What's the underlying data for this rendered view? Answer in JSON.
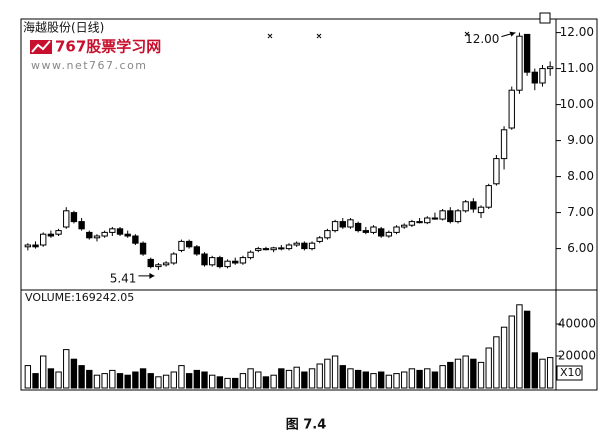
{
  "chart_data": {
    "type": "candlestick",
    "title": "海越股份(日线)",
    "watermark": "767股票学习网",
    "watermark_url": "www.net767.com",
    "volume_label": "VOLUME:169242.05",
    "volume_unit": "X10",
    "caption": "图 7.4",
    "annotations": [
      "5.41",
      "12.00"
    ],
    "up_color": "#ffffff",
    "down_color": "#000000",
    "ylim": [
      4.85,
      12.35
    ],
    "yticks": [
      {
        "value": 6,
        "label": "6.00"
      },
      {
        "value": 7,
        "label": "7.00"
      },
      {
        "value": 8,
        "label": "8.00"
      },
      {
        "value": 9,
        "label": "9.00"
      },
      {
        "value": 10,
        "label": "10.00"
      },
      {
        "value": 11,
        "label": "11.00"
      },
      {
        "value": 12,
        "label": "12.00"
      }
    ],
    "y2lim": [
      0,
      60000
    ],
    "y2ticks": [
      20000,
      40000
    ],
    "open": [
      6.05,
      6.1,
      6.1,
      6.4,
      6.4,
      6.6,
      7.0,
      6.75,
      6.45,
      6.3,
      6.35,
      6.45,
      6.55,
      6.4,
      6.35,
      6.15,
      5.7,
      5.5,
      5.55,
      5.6,
      5.95,
      6.2,
      6.05,
      5.85,
      5.55,
      5.75,
      5.5,
      5.65,
      5.6,
      5.75,
      5.95,
      6.0,
      5.97,
      6.02,
      6.0,
      6.1,
      6.15,
      6.0,
      6.2,
      6.3,
      6.5,
      6.75,
      6.6,
      6.7,
      6.5,
      6.45,
      6.55,
      6.35,
      6.45,
      6.6,
      6.65,
      6.75,
      6.72,
      6.85,
      6.82,
      7.05,
      6.75,
      7.05,
      7.3,
      7.0,
      7.15,
      7.8,
      8.5,
      9.35,
      10.4,
      11.95,
      10.9,
      10.6,
      11.0
    ],
    "high": [
      6.15,
      6.2,
      6.45,
      6.5,
      6.55,
      7.15,
      7.05,
      6.85,
      6.5,
      6.4,
      6.5,
      6.6,
      6.6,
      6.5,
      6.4,
      6.2,
      5.75,
      5.6,
      5.65,
      5.9,
      6.25,
      6.25,
      6.1,
      5.9,
      5.8,
      5.8,
      5.7,
      5.75,
      5.8,
      5.95,
      6.05,
      6.05,
      6.05,
      6.1,
      6.15,
      6.2,
      6.2,
      6.2,
      6.35,
      6.55,
      6.8,
      6.85,
      6.85,
      6.75,
      6.6,
      6.65,
      6.6,
      6.5,
      6.65,
      6.7,
      6.8,
      6.85,
      6.9,
      7.0,
      7.1,
      7.15,
      7.1,
      7.35,
      7.4,
      7.2,
      7.8,
      8.6,
      9.4,
      10.5,
      12.0,
      11.95,
      11.0,
      11.1,
      11.2
    ],
    "low": [
      5.95,
      6.0,
      6.05,
      6.3,
      6.35,
      6.55,
      6.7,
      6.5,
      6.25,
      6.2,
      6.3,
      6.35,
      6.35,
      6.3,
      6.1,
      5.8,
      5.45,
      5.41,
      5.5,
      5.55,
      5.9,
      6.0,
      5.8,
      5.5,
      5.5,
      5.45,
      5.45,
      5.55,
      5.55,
      5.7,
      5.9,
      5.95,
      5.9,
      5.95,
      5.95,
      6.05,
      5.95,
      5.95,
      6.15,
      6.25,
      6.45,
      6.55,
      6.55,
      6.45,
      6.4,
      6.4,
      6.3,
      6.3,
      6.4,
      6.55,
      6.6,
      6.7,
      6.68,
      6.8,
      6.78,
      6.7,
      6.7,
      7.0,
      7.0,
      6.85,
      7.1,
      7.75,
      8.2,
      9.3,
      10.3,
      10.8,
      10.4,
      10.5,
      10.8
    ],
    "close": [
      6.1,
      6.05,
      6.4,
      6.35,
      6.5,
      7.05,
      6.75,
      6.55,
      6.3,
      6.35,
      6.45,
      6.55,
      6.4,
      6.35,
      6.15,
      5.85,
      5.5,
      5.55,
      5.6,
      5.85,
      6.2,
      6.05,
      5.85,
      5.55,
      5.75,
      5.5,
      5.65,
      5.6,
      5.75,
      5.9,
      6.0,
      5.97,
      6.02,
      6.0,
      6.1,
      6.15,
      6.0,
      6.15,
      6.3,
      6.5,
      6.75,
      6.6,
      6.8,
      6.5,
      6.45,
      6.6,
      6.35,
      6.45,
      6.6,
      6.65,
      6.75,
      6.72,
      6.85,
      6.82,
      7.05,
      6.75,
      7.05,
      7.3,
      7.1,
      7.15,
      7.75,
      8.5,
      9.3,
      10.4,
      11.9,
      10.9,
      10.6,
      11.0,
      11.05
    ],
    "volume": [
      14000,
      9000,
      20000,
      12000,
      10000,
      24000,
      18000,
      14000,
      11000,
      8000,
      9000,
      11000,
      9000,
      8000,
      10000,
      12000,
      9000,
      7000,
      8000,
      10000,
      14000,
      9000,
      11000,
      10000,
      8000,
      7000,
      6000,
      6000,
      9000,
      12000,
      10000,
      7000,
      8000,
      12000,
      11000,
      13000,
      10000,
      12000,
      15000,
      18000,
      20000,
      14000,
      12000,
      11000,
      10000,
      9000,
      10000,
      8000,
      9000,
      10000,
      12000,
      11000,
      12000,
      10000,
      14000,
      16000,
      18000,
      20000,
      18000,
      16000,
      25000,
      32000,
      38000,
      45000,
      52000,
      48000,
      22000,
      18000,
      19000
    ]
  }
}
